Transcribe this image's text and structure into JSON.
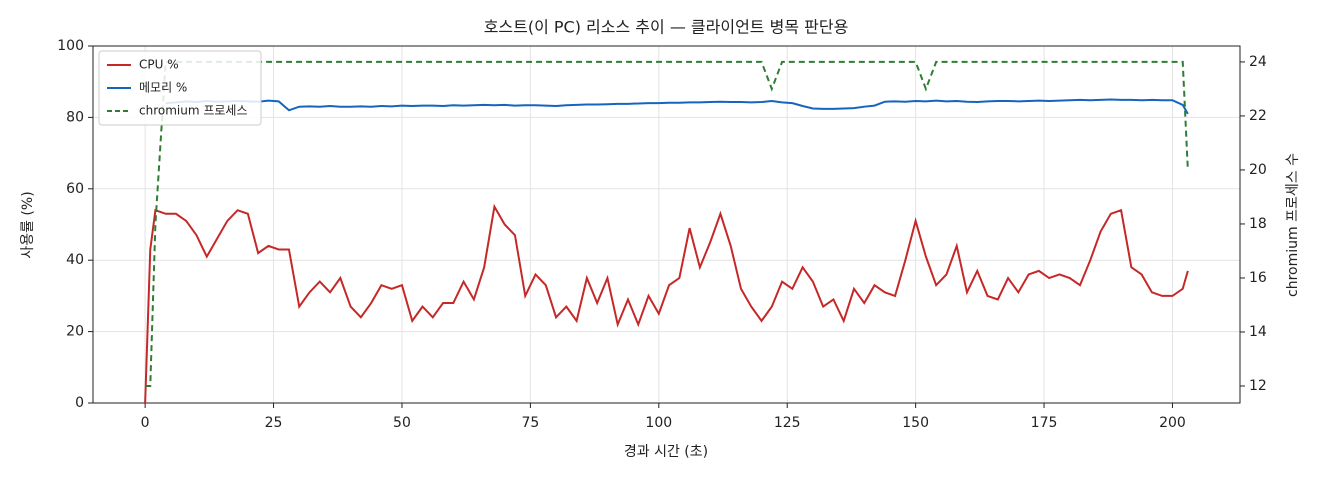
{
  "chart_data": {
    "type": "line",
    "title": "호스트(이 PC) 리소스 추이 — 클라이언트 병목 판단용",
    "xlabel": "경과 시간 (초)",
    "ylabel": "사용률 (%)",
    "y2label": "chromium 프로세스 수",
    "x": [
      0,
      1,
      2,
      4,
      6,
      8,
      10,
      12,
      14,
      16,
      18,
      20,
      22,
      24,
      26,
      28,
      30,
      32,
      34,
      36,
      38,
      40,
      42,
      44,
      46,
      48,
      50,
      52,
      54,
      56,
      58,
      60,
      62,
      64,
      66,
      68,
      70,
      72,
      74,
      76,
      78,
      80,
      82,
      84,
      86,
      88,
      90,
      92,
      94,
      96,
      98,
      100,
      102,
      104,
      106,
      108,
      110,
      112,
      114,
      116,
      118,
      120,
      122,
      124,
      126,
      128,
      130,
      132,
      134,
      136,
      138,
      140,
      142,
      144,
      146,
      148,
      150,
      152,
      154,
      156,
      158,
      160,
      162,
      164,
      166,
      168,
      170,
      172,
      174,
      176,
      178,
      180,
      182,
      184,
      186,
      188,
      190,
      192,
      194,
      196,
      198,
      200,
      202,
      203
    ],
    "series": [
      {
        "name": "CPU %",
        "color": "#c62828",
        "linestyle": "solid",
        "values": [
          0,
          43,
          54,
          53,
          53,
          51,
          47,
          41,
          46,
          51,
          54,
          53,
          42,
          44,
          43,
          43,
          27,
          31,
          34,
          31,
          35,
          27,
          24,
          28,
          33,
          32,
          33,
          23,
          27,
          24,
          28,
          28,
          34,
          29,
          38,
          55,
          50,
          47,
          30,
          36,
          33,
          24,
          27,
          23,
          35,
          28,
          35,
          22,
          29,
          22,
          30,
          25,
          33,
          35,
          49,
          38,
          45,
          53,
          44,
          32,
          27,
          23,
          27,
          34,
          32,
          38,
          34,
          27,
          29,
          23,
          32,
          28,
          33,
          31,
          30,
          40,
          51,
          41,
          33,
          36,
          44,
          31,
          37,
          30,
          29,
          35,
          31,
          36,
          37,
          35,
          36,
          35,
          33,
          40,
          48,
          53,
          54,
          38,
          36,
          31,
          30,
          30,
          32,
          37
        ]
      },
      {
        "name": "메모리 %",
        "color": "#1565c0",
        "linestyle": "solid",
        "values": [
          null,
          null,
          null,
          84,
          84.2,
          84.5,
          84.3,
          84.6,
          84.4,
          84.5,
          84.6,
          84.5,
          84.4,
          84.7,
          84.5,
          82,
          83,
          83.1,
          83,
          83.2,
          83,
          83,
          83.1,
          83,
          83.2,
          83.1,
          83.3,
          83.2,
          83.3,
          83.3,
          83.2,
          83.4,
          83.3,
          83.4,
          83.5,
          83.4,
          83.5,
          83.3,
          83.4,
          83.4,
          83.3,
          83.2,
          83.4,
          83.5,
          83.6,
          83.6,
          83.7,
          83.8,
          83.8,
          83.9,
          84,
          84,
          84.1,
          84.1,
          84.2,
          84.2,
          84.3,
          84.4,
          84.3,
          84.3,
          84.2,
          84.3,
          84.6,
          84.2,
          84,
          83.2,
          82.5,
          82.4,
          82.4,
          82.5,
          82.6,
          83,
          83.3,
          84.4,
          84.5,
          84.4,
          84.6,
          84.5,
          84.7,
          84.5,
          84.6,
          84.4,
          84.3,
          84.5,
          84.6,
          84.6,
          84.5,
          84.6,
          84.7,
          84.6,
          84.7,
          84.8,
          84.9,
          84.8,
          84.9,
          85,
          84.9,
          84.9,
          84.8,
          84.9,
          84.8,
          84.8,
          83.5,
          81
        ]
      },
      {
        "name": "chromium 프로세스",
        "color": "#2e7d32",
        "linestyle": "dashed",
        "axis": "y2",
        "values": [
          12,
          12,
          18,
          24,
          24,
          24,
          24,
          24,
          24,
          24,
          24,
          24,
          24,
          24,
          24,
          24,
          24,
          24,
          24,
          24,
          24,
          24,
          24,
          24,
          24,
          24,
          24,
          24,
          24,
          24,
          24,
          24,
          24,
          24,
          24,
          24,
          24,
          24,
          24,
          24,
          24,
          24,
          24,
          24,
          24,
          24,
          24,
          24,
          24,
          24,
          24,
          24,
          24,
          24,
          24,
          24,
          24,
          24,
          24,
          24,
          24,
          24,
          23,
          24,
          24,
          24,
          24,
          24,
          24,
          24,
          24,
          24,
          24,
          24,
          24,
          24,
          24,
          23,
          24,
          24,
          24,
          24,
          24,
          24,
          24,
          24,
          24,
          24,
          24,
          24,
          24,
          24,
          24,
          24,
          24,
          24,
          24,
          24,
          24,
          24,
          24,
          24,
          24,
          20
        ]
      }
    ],
    "xlim": [
      -10.15,
      213.15
    ],
    "xticks": [
      0,
      25,
      50,
      75,
      100,
      125,
      150,
      175,
      200
    ],
    "ylim": [
      0,
      100
    ],
    "yticks": [
      0,
      20,
      40,
      60,
      80,
      100
    ],
    "y2lim": [
      11.37,
      24.59
    ],
    "y2ticks": [
      12,
      14,
      16,
      18,
      20,
      22,
      24
    ],
    "grid": true,
    "legend": "upper left"
  }
}
